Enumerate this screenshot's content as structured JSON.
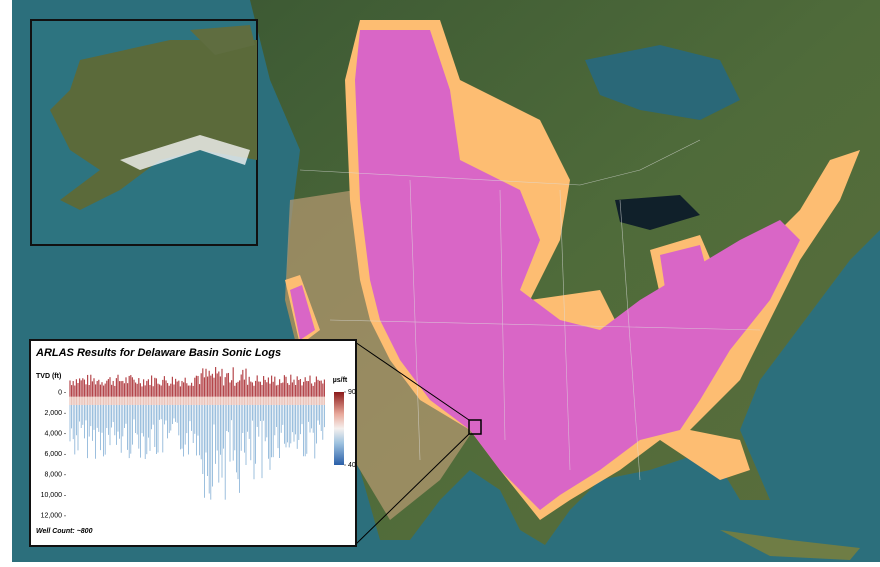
{
  "inset_chart": {
    "title": "ARLAS Results for Delaware Basin Sonic Logs",
    "y_label": "TVD (ft)",
    "ylim": [
      -2500,
      12500
    ],
    "yticks": [
      0,
      {
        "value": 2000,
        "label": "2,000"
      },
      {
        "value": 4000,
        "label": "4,000"
      },
      {
        "value": 6000,
        "label": "6,000"
      },
      {
        "value": 8000,
        "label": "8,000"
      },
      {
        "value": 10000,
        "label": "10,000"
      },
      {
        "value": 12000,
        "label": "12,000"
      }
    ],
    "colorbar": {
      "label": "µs/ft",
      "lim": [
        40,
        90
      ],
      "ticks": [
        90,
        40
      ]
    },
    "note": "Well Count: ~800"
  }
}
